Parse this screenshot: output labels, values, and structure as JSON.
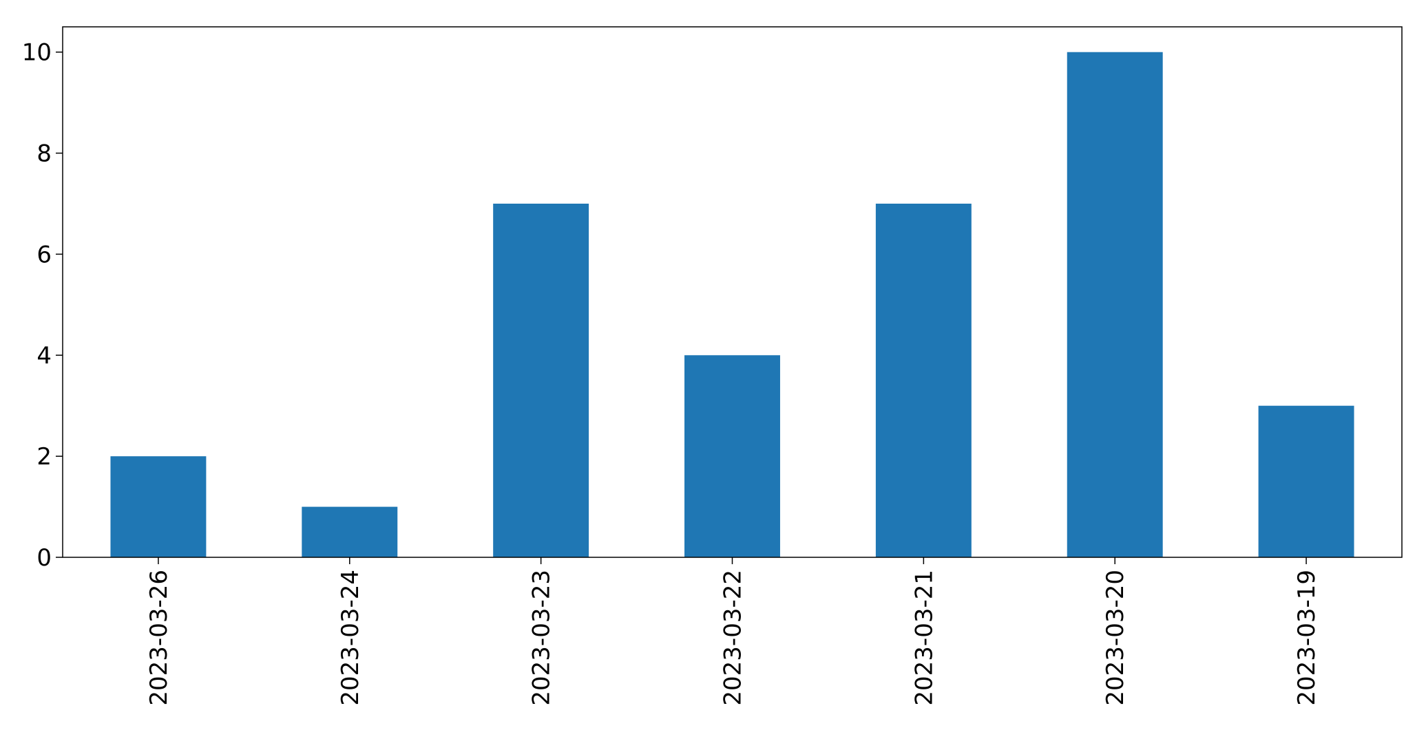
{
  "chart_data": {
    "type": "bar",
    "title": "",
    "xlabel": "",
    "ylabel": "",
    "categories": [
      "2023-03-26",
      "2023-03-24",
      "2023-03-23",
      "2023-03-22",
      "2023-03-21",
      "2023-03-20",
      "2023-03-19"
    ],
    "values": [
      2,
      1,
      7,
      4,
      7,
      10,
      3
    ],
    "ylim": [
      0,
      10.5
    ],
    "yticks": [
      0,
      2,
      4,
      6,
      8,
      10
    ],
    "bar_color": "#1f77b4",
    "grid": false,
    "legend": "none",
    "xtick_rotation": "vertical"
  }
}
